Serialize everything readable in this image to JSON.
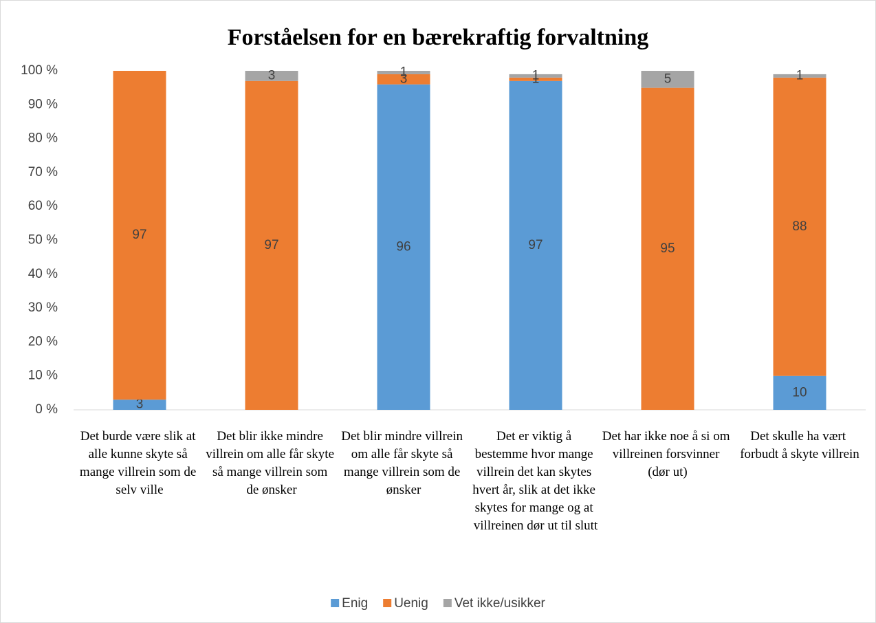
{
  "chart_data": {
    "type": "stacked_bar",
    "title": "Forståelsen for en bærekraftig forvaltning",
    "categories": [
      "Det burde være slik at alle kunne skyte så mange villrein som de selv ville",
      "Det blir ikke mindre villrein om alle får skyte så mange villrein som de ønsker",
      "Det blir mindre villrein om alle får skyte så mange villrein som de ønsker",
      "Det er viktig å bestemme hvor mange villrein det kan skytes hvert år, slik at det ikke skytes for mange og at villreinen dør ut til slutt",
      "Det har ikke noe å si om villreinen forsvinner (dør ut)",
      "Det skulle ha vært forbudt å skyte villrein"
    ],
    "series": [
      {
        "name": "Enig",
        "color": "#5b9bd5",
        "values": [
          3,
          null,
          96,
          97,
          null,
          10
        ]
      },
      {
        "name": "Uenig",
        "color": "#ed7d31",
        "values": [
          97,
          97,
          3,
          1,
          95,
          88
        ]
      },
      {
        "name": "Vet ikke/usikker",
        "color": "#a5a5a5",
        "values": [
          null,
          3,
          1,
          1,
          5,
          1
        ]
      }
    ],
    "ylim": [
      0,
      100
    ],
    "yticks": [
      {
        "value": 0,
        "label": "0 %"
      },
      {
        "value": 10,
        "label": "10 %"
      },
      {
        "value": 20,
        "label": "20 %"
      },
      {
        "value": 30,
        "label": "30 %"
      },
      {
        "value": 40,
        "label": "40 %"
      },
      {
        "value": 50,
        "label": "50 %"
      },
      {
        "value": 60,
        "label": "60 %"
      },
      {
        "value": 70,
        "label": "70 %"
      },
      {
        "value": 80,
        "label": "80 %"
      },
      {
        "value": 90,
        "label": "90 %"
      },
      {
        "value": 100,
        "label": "100 %"
      }
    ],
    "legend": "bottom"
  }
}
